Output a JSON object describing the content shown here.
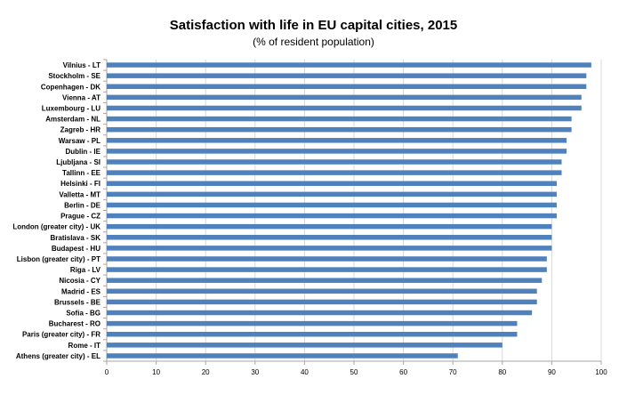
{
  "chart_data": {
    "type": "bar",
    "orientation": "horizontal",
    "title": "Satisfaction with life in EU capital cities, 2015",
    "subtitle": "(% of resident population)",
    "categories": [
      "Vilnius - LT",
      "Stockholm - SE",
      "Copenhagen - DK",
      "Vienna - AT",
      "Luxembourg - LU",
      "Amsterdam - NL",
      "Zagreb - HR",
      "Warsaw - PL",
      "Dublin - IE",
      "Ljubljana - SI",
      "Tallinn - EE",
      "Helsinki - FI",
      "Valletta - MT",
      "Berlin - DE",
      "Prague - CZ",
      "London (greater city) - UK",
      "Bratislava - SK",
      "Budapest - HU",
      "Lisbon (greater city) - PT",
      "Riga - LV",
      "Nicosia - CY",
      "Madrid - ES",
      "Brussels - BE",
      "Sofia - BG",
      "Bucharest - RO",
      "Paris (greater city) - FR",
      "Rome - IT",
      "Athens (greater city) - EL"
    ],
    "values": [
      98,
      97,
      97,
      96,
      96,
      94,
      94,
      93,
      93,
      92,
      92,
      91,
      91,
      91,
      91,
      90,
      90,
      90,
      89,
      89,
      88,
      87,
      87,
      86,
      83,
      83,
      80,
      71
    ],
    "xlim": [
      0,
      100
    ],
    "xticks": [
      "0",
      "10",
      "20",
      "30",
      "40",
      "50",
      "60",
      "70",
      "80",
      "90",
      "100"
    ],
    "bar_color": "#4f81bd",
    "grid": true,
    "legend": "none"
  }
}
